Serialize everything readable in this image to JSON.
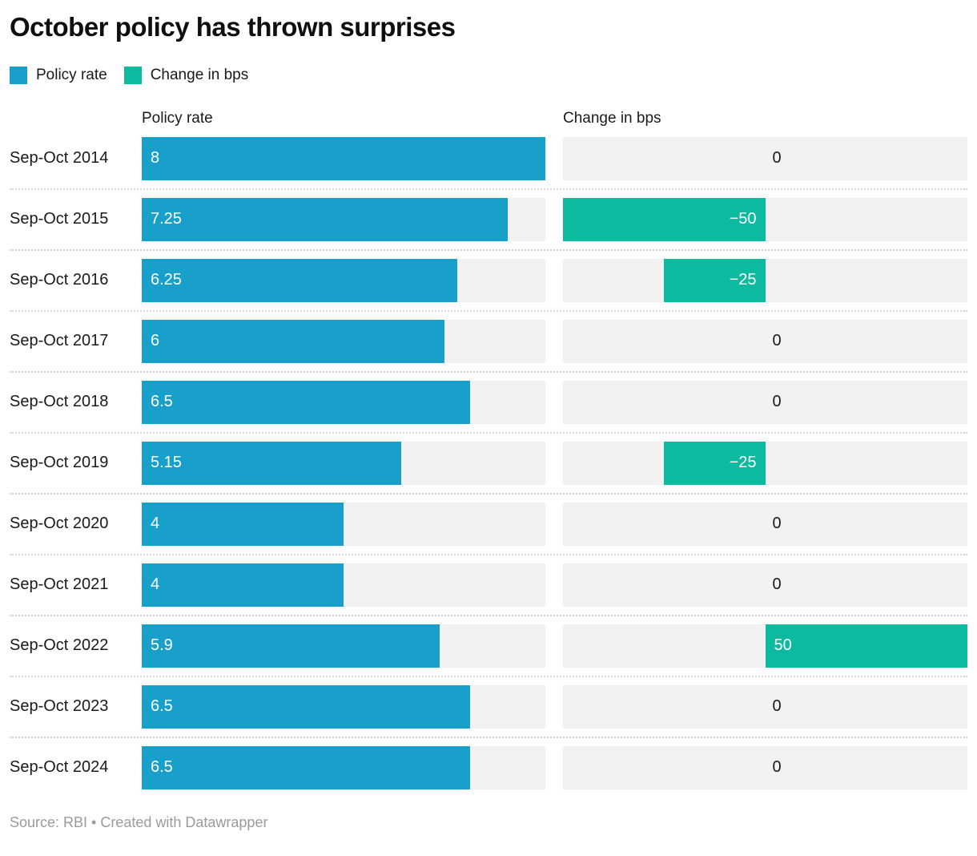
{
  "title": "October policy has thrown surprises",
  "legend": {
    "items": [
      {
        "label": "Policy rate",
        "color": "#18a0ca"
      },
      {
        "label": "Change in bps",
        "color": "#0cba9f"
      }
    ]
  },
  "columns": {
    "policy_header": "Policy rate",
    "change_header": "Change in bps"
  },
  "footer": {
    "text": "Source: RBI • Created with Datawrapper"
  },
  "chart_data": {
    "type": "bar",
    "subtype": "horizontal-split-bars",
    "title": "October policy has thrown surprises",
    "categories": [
      "Sep-Oct 2014",
      "Sep-Oct 2015",
      "Sep-Oct 2016",
      "Sep-Oct 2017",
      "Sep-Oct 2018",
      "Sep-Oct 2019",
      "Sep-Oct 2020",
      "Sep-Oct 2021",
      "Sep-Oct 2022",
      "Sep-Oct 2023",
      "Sep-Oct 2024"
    ],
    "series": [
      {
        "name": "Policy rate",
        "color": "#18a0ca",
        "values": [
          8,
          7.25,
          6.25,
          6,
          6.5,
          5.15,
          4,
          4,
          5.9,
          6.5,
          6.5
        ],
        "xlim": [
          0,
          8
        ],
        "value_labels": [
          "8",
          "7.25",
          "6.25",
          "6",
          "6.5",
          "5.15",
          "4",
          "4",
          "5.9",
          "6.5",
          "6.5"
        ]
      },
      {
        "name": "Change in bps",
        "color": "#0cba9f",
        "values": [
          0,
          -50,
          -25,
          0,
          0,
          -25,
          0,
          0,
          50,
          0,
          0
        ],
        "xlim": [
          -50,
          50
        ],
        "value_labels": [
          "0",
          "−50",
          "−25",
          "0",
          "0",
          "−25",
          "0",
          "0",
          "50",
          "0",
          "0"
        ]
      }
    ],
    "legend_position": "top-left",
    "grid": false,
    "track_color": "#f2f2f2",
    "source": "RBI",
    "credit": "Created with Datawrapper"
  }
}
